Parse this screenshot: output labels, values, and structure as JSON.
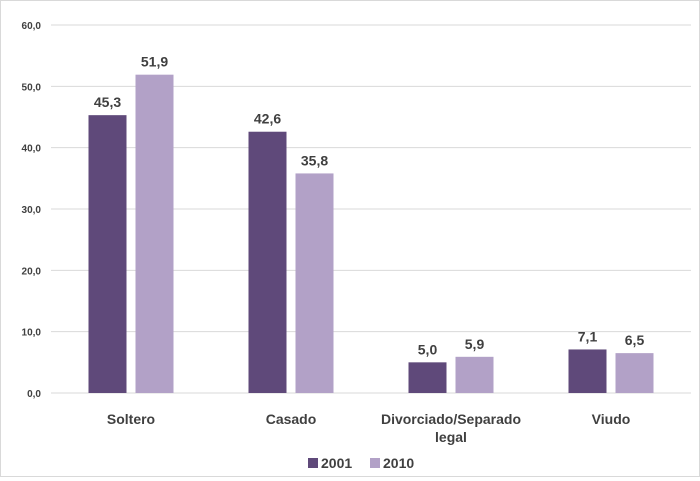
{
  "chart_data": {
    "type": "bar",
    "categories": [
      "Soltero",
      "Casado",
      "Divorciado/Separado legal",
      "Viudo"
    ],
    "category_lines": [
      [
        "Soltero"
      ],
      [
        "Casado"
      ],
      [
        "Divorciado/Separado",
        "legal"
      ],
      [
        "Viudo"
      ]
    ],
    "series": [
      {
        "name": "2001",
        "values": [
          45.3,
          42.6,
          5.0,
          7.1
        ],
        "labels": [
          "45,3",
          "42,6",
          "5,0",
          "7,1"
        ],
        "color": "#5f497a"
      },
      {
        "name": "2010",
        "values": [
          51.9,
          35.8,
          5.9,
          6.5
        ],
        "labels": [
          "51,9",
          "35,8",
          "5,9",
          "6,5"
        ],
        "color": "#b2a1c7"
      }
    ],
    "yticks": [
      0,
      10,
      20,
      30,
      40,
      50,
      60
    ],
    "ytick_labels": [
      "0,0",
      "10,0",
      "20,0",
      "30,0",
      "40,0",
      "50,0",
      "60,0"
    ],
    "ylim": [
      0,
      60
    ],
    "grid": true,
    "gridline_color": "#d9d9d9",
    "legend_position": "bottom",
    "title": "",
    "xlabel": "",
    "ylabel": ""
  }
}
